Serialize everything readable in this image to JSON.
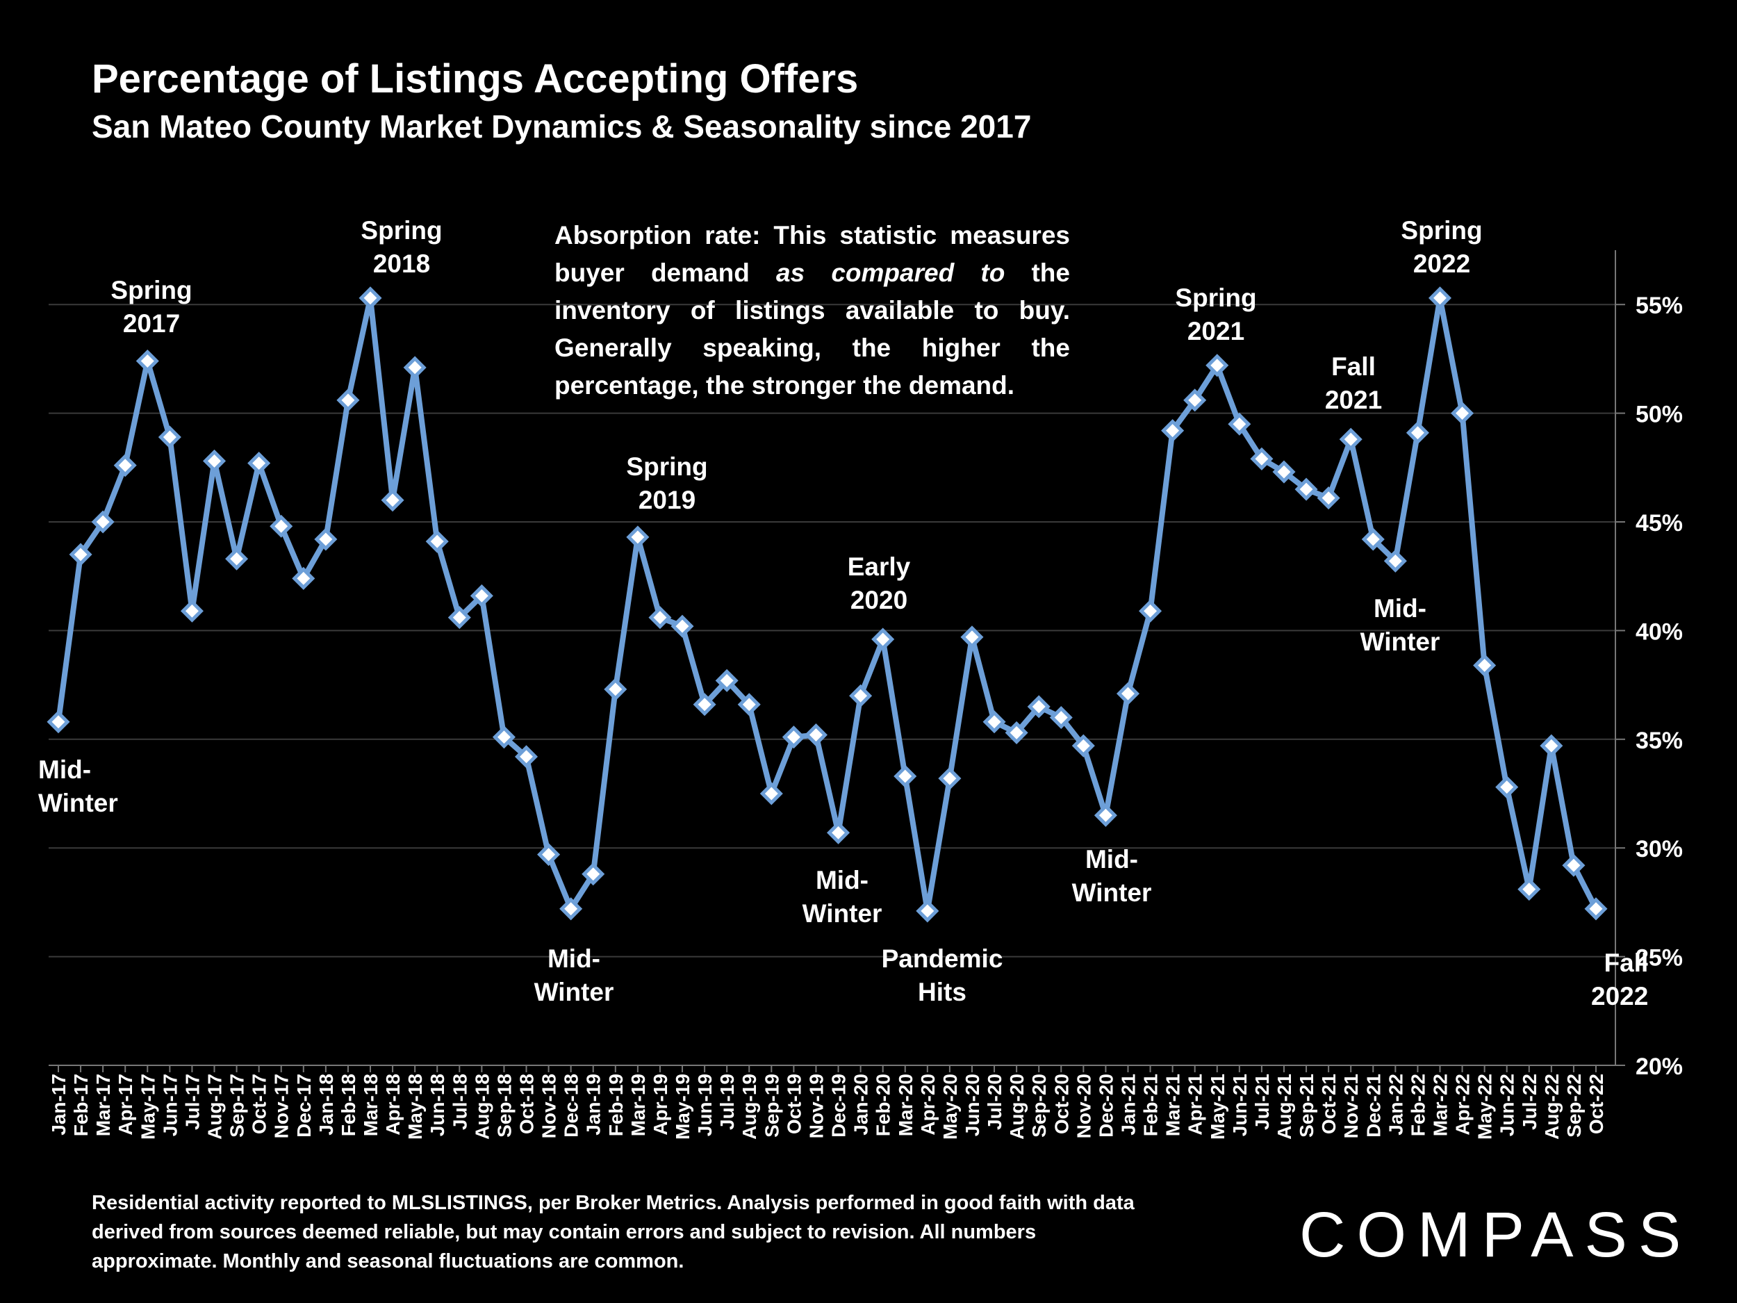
{
  "title": "Percentage of Listings Accepting Offers",
  "subtitle": "San Mateo County Market Dynamics & Seasonality since 2017",
  "note": {
    "part1": "Absorption rate: This statistic measures buyer demand ",
    "emph": "as compared to",
    "part2": " the inventory of listings available to buy. Generally speaking, the higher the percentage, the stronger the demand."
  },
  "footnote": "Residential activity reported to MLSLISTINGS, per Broker Metrics. Analysis performed in good faith with data derived from sources deemed reliable, but may contain errors and subject to revision. All numbers approximate. Monthly and seasonal fluctuations are common.",
  "logo": "COMPASS",
  "annotations": [
    {
      "line1": "Mid-",
      "line2": "Winter"
    },
    {
      "line1": "Spring",
      "line2": "2017"
    },
    {
      "line1": "Spring",
      "line2": "2018"
    },
    {
      "line1": "Mid-",
      "line2": "Winter"
    },
    {
      "line1": "Spring",
      "line2": "2019"
    },
    {
      "line1": "Early",
      "line2": "2020"
    },
    {
      "line1": "Mid-",
      "line2": "Winter"
    },
    {
      "line1": "Pandemic",
      "line2": "Hits"
    },
    {
      "line1": "Mid-",
      "line2": "Winter"
    },
    {
      "line1": "Spring",
      "line2": "2021"
    },
    {
      "line1": "Fall",
      "line2": "2021"
    },
    {
      "line1": "Mid-",
      "line2": "Winter"
    },
    {
      "line1": "Spring",
      "line2": "2022"
    },
    {
      "line1": "Fall",
      "line2": "2022"
    }
  ],
  "chart_data": {
    "type": "line",
    "title": "Percentage of Listings Accepting Offers",
    "subtitle": "San Mateo County Market Dynamics & Seasonality since 2017",
    "ylim": [
      20,
      57.5
    ],
    "yticks": [
      20,
      25,
      30,
      35,
      40,
      45,
      50,
      55
    ],
    "ytick_labels": [
      "20%",
      "25%",
      "30%",
      "35%",
      "40%",
      "45%",
      "50%",
      "55%"
    ],
    "grid": true,
    "line_color": "#6d9fd8",
    "marker_fill": "#ffffff",
    "categories": [
      "Jan-17",
      "Feb-17",
      "Mar-17",
      "Apr-17",
      "May-17",
      "Jun-17",
      "Jul-17",
      "Aug-17",
      "Sep-17",
      "Oct-17",
      "Nov-17",
      "Dec-17",
      "Jan-18",
      "Feb-18",
      "Mar-18",
      "Apr-18",
      "May-18",
      "Jun-18",
      "Jul-18",
      "Aug-18",
      "Sep-18",
      "Oct-18",
      "Nov-18",
      "Dec-18",
      "Jan-19",
      "Feb-19",
      "Mar-19",
      "Apr-19",
      "May-19",
      "Jun-19",
      "Jul-19",
      "Aug-19",
      "Sep-19",
      "Oct-19",
      "Nov-19",
      "Dec-19",
      "Jan-20",
      "Feb-20",
      "Mar-20",
      "Apr-20",
      "May-20",
      "Jun-20",
      "Jul-20",
      "Aug-20",
      "Sep-20",
      "Oct-20",
      "Nov-20",
      "Dec-20",
      "Jan-21",
      "Feb-21",
      "Mar-21",
      "Apr-21",
      "May-21",
      "Jun-21",
      "Jul-21",
      "Aug-21",
      "Sep-21",
      "Oct-21",
      "Nov-21",
      "Dec-21",
      "Jan-22",
      "Feb-22",
      "Mar-22",
      "Apr-22",
      "May-22",
      "Jun-22",
      "Jul-22",
      "Aug-22",
      "Sep-22",
      "Oct-22"
    ],
    "values": [
      35.8,
      43.5,
      45.0,
      47.6,
      52.4,
      48.9,
      40.9,
      47.8,
      43.3,
      47.7,
      44.8,
      42.4,
      44.2,
      50.6,
      55.3,
      46.0,
      52.1,
      44.1,
      40.6,
      41.6,
      35.1,
      34.2,
      29.7,
      27.2,
      28.8,
      37.3,
      44.3,
      40.6,
      40.2,
      36.6,
      37.7,
      36.6,
      32.5,
      35.1,
      35.2,
      30.7,
      37.0,
      39.6,
      33.3,
      27.1,
      33.2,
      39.7,
      35.8,
      35.3,
      36.5,
      36.0,
      34.7,
      31.5,
      37.1,
      40.9,
      49.2,
      50.6,
      52.2,
      49.5,
      47.9,
      47.3,
      46.5,
      46.1,
      48.8,
      44.2,
      43.2,
      49.1,
      55.3,
      50.0,
      38.4,
      32.8,
      28.1,
      34.7,
      29.2,
      27.2
    ]
  }
}
